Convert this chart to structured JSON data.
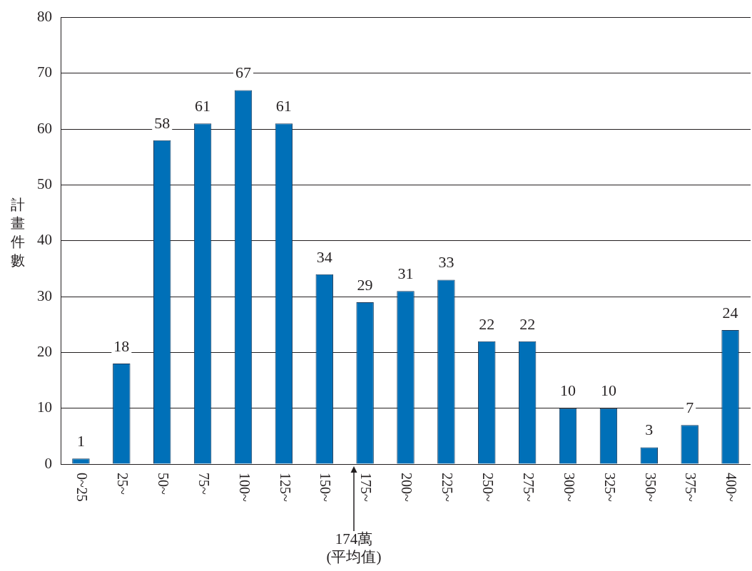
{
  "chart_data": {
    "type": "bar",
    "ylabel": "計畫件數",
    "categories": [
      "0~25",
      "25~",
      "50~",
      "75~",
      "100~",
      "125~",
      "150~",
      "175~",
      "200~",
      "225~",
      "250~",
      "275~",
      "300~",
      "325~",
      "350~",
      "375~",
      "400~"
    ],
    "values": [
      1,
      18,
      58,
      61,
      67,
      61,
      34,
      29,
      31,
      33,
      22,
      22,
      10,
      10,
      3,
      7,
      24
    ],
    "color": "#0070b8",
    "ylim": [
      0,
      80
    ],
    "yticks": [
      0,
      10,
      20,
      30,
      40,
      50,
      60,
      70,
      80
    ],
    "grid": "y",
    "data_labels": true,
    "legend": false,
    "annotations": [
      "174萬\n(平均值)"
    ]
  }
}
